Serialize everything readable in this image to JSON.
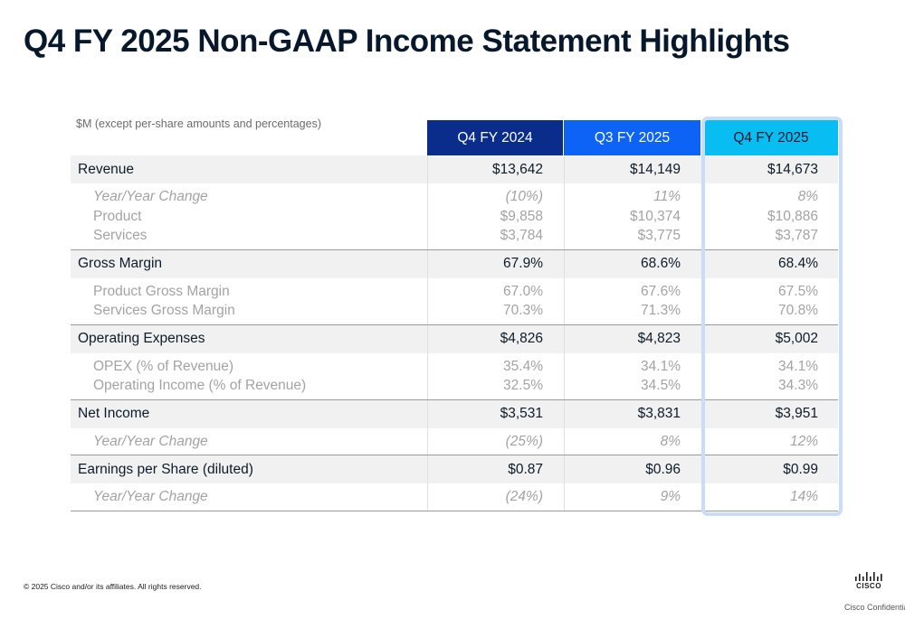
{
  "title": "Q4 FY 2025 Non-GAAP Income Statement Highlights",
  "subtitle": "$M (except per-share amounts and percentages)",
  "columns": [
    "Q4 FY 2024",
    "Q3 FY 2025",
    "Q4 FY 2025"
  ],
  "colors": {
    "col1": "#0a2d8c",
    "col2": "#0d63f5",
    "col3": "#08bdf2",
    "highlight_border": "#c9dcfb"
  },
  "rows": [
    {
      "label": "Revenue",
      "values": [
        "$13,642",
        "$14,149",
        "$14,673"
      ]
    },
    {
      "lines": [
        {
          "label": "Year/Year Change",
          "italic": true,
          "values": [
            "(10%)",
            "11%",
            "8%"
          ]
        },
        {
          "label": "Product",
          "values": [
            "$9,858",
            "$10,374",
            "$10,886"
          ]
        },
        {
          "label": "Services",
          "values": [
            "$3,784",
            "$3,775",
            "$3,787"
          ]
        }
      ]
    },
    {
      "label": "Gross Margin",
      "values": [
        "67.9%",
        "68.6%",
        "68.4%"
      ]
    },
    {
      "lines": [
        {
          "label": "Product Gross Margin",
          "values": [
            "67.0%",
            "67.6%",
            "67.5%"
          ]
        },
        {
          "label": "Services Gross Margin",
          "values": [
            "70.3%",
            "71.3%",
            "70.8%"
          ]
        }
      ]
    },
    {
      "label": "Operating Expenses",
      "values": [
        "$4,826",
        "$4,823",
        "$5,002"
      ]
    },
    {
      "lines": [
        {
          "label": "OPEX (% of Revenue)",
          "values": [
            "35.4%",
            "34.1%",
            "34.1%"
          ]
        },
        {
          "label": "Operating Income (% of Revenue)",
          "values": [
            "32.5%",
            "34.5%",
            "34.3%"
          ]
        }
      ]
    },
    {
      "label": "Net Income",
      "values": [
        "$3,531",
        "$3,831",
        "$3,951"
      ]
    },
    {
      "lines": [
        {
          "label": "Year/Year Change",
          "italic": true,
          "values": [
            "(25%)",
            "8%",
            "12%"
          ]
        }
      ]
    },
    {
      "label": "Earnings per Share (diluted)",
      "values": [
        "$0.87",
        "$0.96",
        "$0.99"
      ]
    },
    {
      "lines": [
        {
          "label": "Year/Year Change",
          "italic": true,
          "values": [
            "(24%)",
            "9%",
            "14%"
          ]
        }
      ]
    }
  ],
  "footer": {
    "copyright": "© 2025 Cisco and/or its affiliates. All rights reserved.",
    "logo_text": "CISCO",
    "confidential": "Cisco Confidential",
    "logo_icon": "cisco-bars-icon"
  }
}
